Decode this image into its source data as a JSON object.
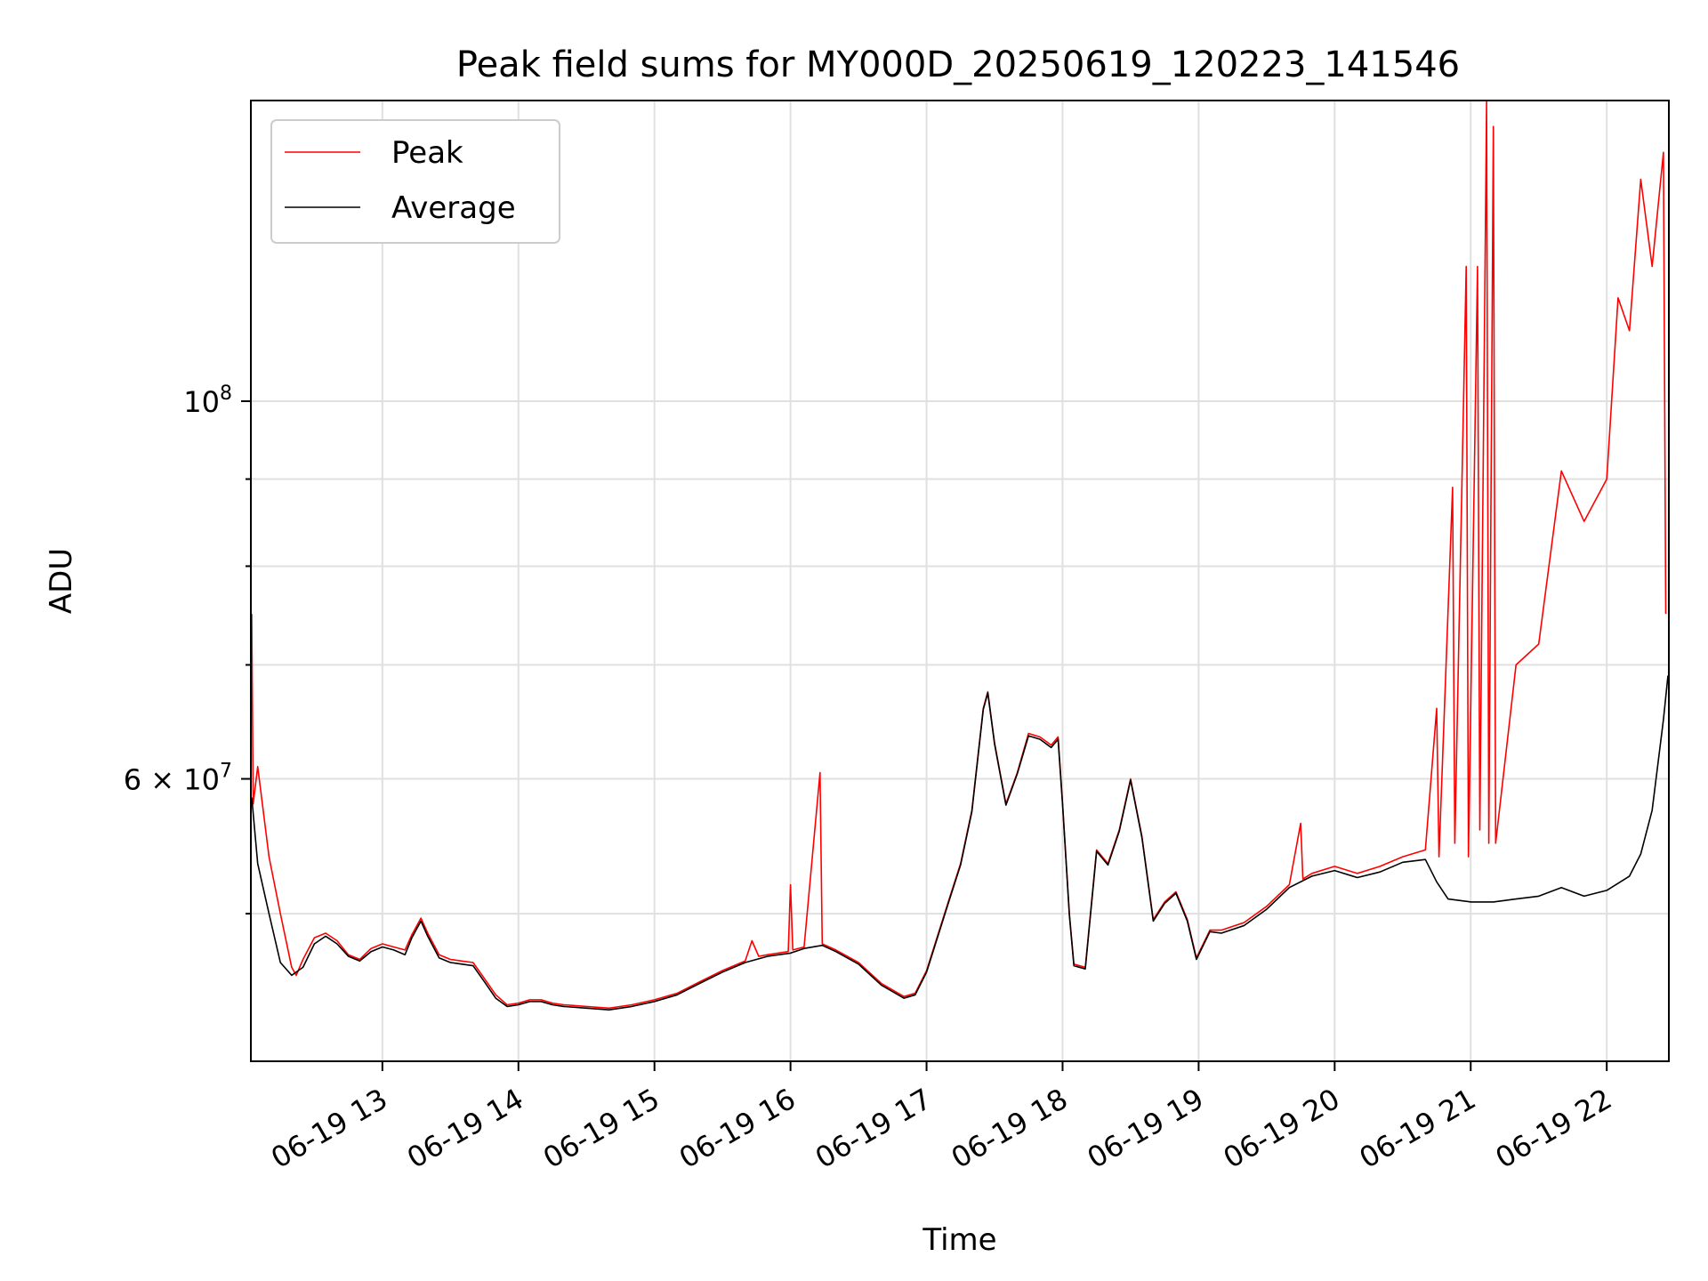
{
  "chart_data": {
    "type": "line",
    "title": "Peak field sums for MY000D_20250619_120223_141546",
    "xlabel": "Time",
    "ylabel": "ADU",
    "yscale": "log",
    "ylim": [
      41000000,
      150000000
    ],
    "xlim": [
      "2025-06-19 12:02:23",
      "2025-06-19 22:27:00"
    ],
    "grid": true,
    "legend_position": "upper left",
    "x_tick_labels": [
      "06-19 13",
      "06-19 14",
      "06-19 15",
      "06-19 16",
      "06-19 17",
      "06-19 18",
      "06-19 19",
      "06-19 20",
      "06-19 21",
      "06-19 22"
    ],
    "y_tick_labels": [
      {
        "value": 100000000,
        "base": "10",
        "exponent": "8",
        "mantissa": ""
      },
      {
        "value": 60000000,
        "base": "10",
        "exponent": "7",
        "mantissa": "6 × "
      }
    ],
    "series": [
      {
        "name": "Peak",
        "color": "#ff0000",
        "points": [
          [
            "2025-06-19 12:02:23",
            75000000
          ],
          [
            "2025-06-19 12:03:00",
            58000000
          ],
          [
            "2025-06-19 12:05:00",
            61000000
          ],
          [
            "2025-06-19 12:10:00",
            54000000
          ],
          [
            "2025-06-19 12:15:00",
            50000000
          ],
          [
            "2025-06-19 12:20:00",
            46500000
          ],
          [
            "2025-06-19 12:22:00",
            46000000
          ],
          [
            "2025-06-19 12:25:00",
            47000000
          ],
          [
            "2025-06-19 12:30:00",
            48400000
          ],
          [
            "2025-06-19 12:35:00",
            48700000
          ],
          [
            "2025-06-19 12:40:00",
            48200000
          ],
          [
            "2025-06-19 12:45:00",
            47300000
          ],
          [
            "2025-06-19 12:50:00",
            47000000
          ],
          [
            "2025-06-19 12:55:00",
            47700000
          ],
          [
            "2025-06-19 13:00:00",
            48000000
          ],
          [
            "2025-06-19 13:05:00",
            47800000
          ],
          [
            "2025-06-19 13:10:00",
            47600000
          ],
          [
            "2025-06-19 13:13:00",
            48600000
          ],
          [
            "2025-06-19 13:17:00",
            49700000
          ],
          [
            "2025-06-19 13:20:00",
            48700000
          ],
          [
            "2025-06-19 13:25:00",
            47300000
          ],
          [
            "2025-06-19 13:30:00",
            47000000
          ],
          [
            "2025-06-19 13:35:00",
            46900000
          ],
          [
            "2025-06-19 13:40:00",
            46800000
          ],
          [
            "2025-06-19 13:45:00",
            45800000
          ],
          [
            "2025-06-19 13:50:00",
            44800000
          ],
          [
            "2025-06-19 13:55:00",
            44200000
          ],
          [
            "2025-06-19 14:00:00",
            44300000
          ],
          [
            "2025-06-19 14:05:00",
            44500000
          ],
          [
            "2025-06-19 14:10:00",
            44500000
          ],
          [
            "2025-06-19 14:15:00",
            44300000
          ],
          [
            "2025-06-19 14:20:00",
            44200000
          ],
          [
            "2025-06-19 14:30:00",
            44100000
          ],
          [
            "2025-06-19 14:40:00",
            44000000
          ],
          [
            "2025-06-19 14:50:00",
            44200000
          ],
          [
            "2025-06-19 15:00:00",
            44500000
          ],
          [
            "2025-06-19 15:10:00",
            44900000
          ],
          [
            "2025-06-19 15:20:00",
            45600000
          ],
          [
            "2025-06-19 15:30:00",
            46300000
          ],
          [
            "2025-06-19 15:40:00",
            46900000
          ],
          [
            "2025-06-19 15:43:00",
            48200000
          ],
          [
            "2025-06-19 15:46:00",
            47200000
          ],
          [
            "2025-06-19 15:50:00",
            47300000
          ],
          [
            "2025-06-19 15:59:00",
            47500000
          ],
          [
            "2025-06-19 16:00:00",
            52000000
          ],
          [
            "2025-06-19 16:01:00",
            47600000
          ],
          [
            "2025-06-19 16:06:00",
            47800000
          ],
          [
            "2025-06-19 16:13:00",
            60500000
          ],
          [
            "2025-06-19 16:14:00",
            48000000
          ],
          [
            "2025-06-19 16:20:00",
            47600000
          ],
          [
            "2025-06-19 16:30:00",
            46800000
          ],
          [
            "2025-06-19 16:40:00",
            45500000
          ],
          [
            "2025-06-19 16:50:00",
            44700000
          ],
          [
            "2025-06-19 16:55:00",
            44900000
          ],
          [
            "2025-06-19 17:00:00",
            46300000
          ],
          [
            "2025-06-19 17:10:00",
            51000000
          ],
          [
            "2025-06-19 17:15:00",
            53500000
          ],
          [
            "2025-06-19 17:20:00",
            57500000
          ],
          [
            "2025-06-19 17:25:00",
            66000000
          ],
          [
            "2025-06-19 17:27:00",
            67500000
          ],
          [
            "2025-06-19 17:30:00",
            63000000
          ],
          [
            "2025-06-19 17:35:00",
            58000000
          ],
          [
            "2025-06-19 17:40:00",
            60500000
          ],
          [
            "2025-06-19 17:45:00",
            63800000
          ],
          [
            "2025-06-19 17:50:00",
            63500000
          ],
          [
            "2025-06-19 17:55:00",
            62800000
          ],
          [
            "2025-06-19 17:58:00",
            63500000
          ],
          [
            "2025-06-19 18:00:00",
            58000000
          ],
          [
            "2025-06-19 18:03:00",
            50000000
          ],
          [
            "2025-06-19 18:05:00",
            46700000
          ],
          [
            "2025-06-19 18:10:00",
            46500000
          ],
          [
            "2025-06-19 18:15:00",
            54500000
          ],
          [
            "2025-06-19 18:20:00",
            53500000
          ],
          [
            "2025-06-19 18:25:00",
            56000000
          ],
          [
            "2025-06-19 18:30:00",
            60000000
          ],
          [
            "2025-06-19 18:35:00",
            55500000
          ],
          [
            "2025-06-19 18:40:00",
            49600000
          ],
          [
            "2025-06-19 18:45:00",
            50800000
          ],
          [
            "2025-06-19 18:50:00",
            51500000
          ],
          [
            "2025-06-19 18:55:00",
            49600000
          ],
          [
            "2025-06-19 18:59:00",
            47100000
          ],
          [
            "2025-06-19 19:05:00",
            48900000
          ],
          [
            "2025-06-19 19:10:00",
            48900000
          ],
          [
            "2025-06-19 19:20:00",
            49400000
          ],
          [
            "2025-06-19 19:30:00",
            50500000
          ],
          [
            "2025-06-19 19:40:00",
            52000000
          ],
          [
            "2025-06-19 19:45:00",
            56500000
          ],
          [
            "2025-06-19 19:46:00",
            52400000
          ],
          [
            "2025-06-19 19:50:00",
            52800000
          ],
          [
            "2025-06-19 20:00:00",
            53300000
          ],
          [
            "2025-06-19 20:10:00",
            52800000
          ],
          [
            "2025-06-19 20:20:00",
            53300000
          ],
          [
            "2025-06-19 20:30:00",
            54000000
          ],
          [
            "2025-06-19 20:40:00",
            54500000
          ],
          [
            "2025-06-19 20:45:00",
            66000000
          ],
          [
            "2025-06-19 20:46:00",
            54000000
          ],
          [
            "2025-06-19 20:52:00",
            89000000
          ],
          [
            "2025-06-19 20:53:00",
            55000000
          ],
          [
            "2025-06-19 20:58:00",
            120000000
          ],
          [
            "2025-06-19 20:59:00",
            54000000
          ],
          [
            "2025-06-19 21:03:00",
            120000000
          ],
          [
            "2025-06-19 21:04:00",
            56000000
          ],
          [
            "2025-06-19 21:07:00",
            150000000
          ],
          [
            "2025-06-19 21:08:00",
            55000000
          ],
          [
            "2025-06-19 21:10:00",
            145000000
          ],
          [
            "2025-06-19 21:11:00",
            55000000
          ],
          [
            "2025-06-19 21:20:00",
            70000000
          ],
          [
            "2025-06-19 21:30:00",
            72000000
          ],
          [
            "2025-06-19 21:40:00",
            91000000
          ],
          [
            "2025-06-19 21:50:00",
            85000000
          ],
          [
            "2025-06-19 22:00:00",
            90000000
          ],
          [
            "2025-06-19 22:05:00",
            115000000
          ],
          [
            "2025-06-19 22:10:00",
            110000000
          ],
          [
            "2025-06-19 22:15:00",
            135000000
          ],
          [
            "2025-06-19 22:20:00",
            120000000
          ],
          [
            "2025-06-19 22:25:00",
            140000000
          ],
          [
            "2025-06-19 22:26:00",
            75000000
          ]
        ]
      },
      {
        "name": "Average",
        "color": "#000000",
        "points": [
          [
            "2025-06-19 12:02:23",
            58500000
          ],
          [
            "2025-06-19 12:05:00",
            53500000
          ],
          [
            "2025-06-19 12:10:00",
            50000000
          ],
          [
            "2025-06-19 12:15:00",
            46800000
          ],
          [
            "2025-06-19 12:20:00",
            46000000
          ],
          [
            "2025-06-19 12:25:00",
            46500000
          ],
          [
            "2025-06-19 12:30:00",
            48000000
          ],
          [
            "2025-06-19 12:35:00",
            48500000
          ],
          [
            "2025-06-19 12:40:00",
            48000000
          ],
          [
            "2025-06-19 12:45:00",
            47200000
          ],
          [
            "2025-06-19 12:50:00",
            46900000
          ],
          [
            "2025-06-19 12:55:00",
            47500000
          ],
          [
            "2025-06-19 13:00:00",
            47800000
          ],
          [
            "2025-06-19 13:05:00",
            47600000
          ],
          [
            "2025-06-19 13:10:00",
            47300000
          ],
          [
            "2025-06-19 13:13:00",
            48400000
          ],
          [
            "2025-06-19 13:17:00",
            49500000
          ],
          [
            "2025-06-19 13:20:00",
            48500000
          ],
          [
            "2025-06-19 13:25:00",
            47100000
          ],
          [
            "2025-06-19 13:30:00",
            46800000
          ],
          [
            "2025-06-19 13:35:00",
            46700000
          ],
          [
            "2025-06-19 13:40:00",
            46600000
          ],
          [
            "2025-06-19 13:45:00",
            45600000
          ],
          [
            "2025-06-19 13:50:00",
            44600000
          ],
          [
            "2025-06-19 13:55:00",
            44100000
          ],
          [
            "2025-06-19 14:00:00",
            44200000
          ],
          [
            "2025-06-19 14:05:00",
            44400000
          ],
          [
            "2025-06-19 14:10:00",
            44400000
          ],
          [
            "2025-06-19 14:15:00",
            44200000
          ],
          [
            "2025-06-19 14:20:00",
            44100000
          ],
          [
            "2025-06-19 14:30:00",
            44000000
          ],
          [
            "2025-06-19 14:40:00",
            43900000
          ],
          [
            "2025-06-19 14:50:00",
            44100000
          ],
          [
            "2025-06-19 15:00:00",
            44400000
          ],
          [
            "2025-06-19 15:10:00",
            44800000
          ],
          [
            "2025-06-19 15:20:00",
            45500000
          ],
          [
            "2025-06-19 15:30:00",
            46200000
          ],
          [
            "2025-06-19 15:40:00",
            46800000
          ],
          [
            "2025-06-19 15:50:00",
            47200000
          ],
          [
            "2025-06-19 16:00:00",
            47400000
          ],
          [
            "2025-06-19 16:06:00",
            47700000
          ],
          [
            "2025-06-19 16:14:00",
            47900000
          ],
          [
            "2025-06-19 16:20:00",
            47500000
          ],
          [
            "2025-06-19 16:30:00",
            46700000
          ],
          [
            "2025-06-19 16:40:00",
            45400000
          ],
          [
            "2025-06-19 16:50:00",
            44600000
          ],
          [
            "2025-06-19 16:55:00",
            44800000
          ],
          [
            "2025-06-19 17:00:00",
            46200000
          ],
          [
            "2025-06-19 17:10:00",
            50900000
          ],
          [
            "2025-06-19 17:15:00",
            53400000
          ],
          [
            "2025-06-19 17:20:00",
            57400000
          ],
          [
            "2025-06-19 17:25:00",
            65900000
          ],
          [
            "2025-06-19 17:27:00",
            67400000
          ],
          [
            "2025-06-19 17:30:00",
            62900000
          ],
          [
            "2025-06-19 17:35:00",
            57900000
          ],
          [
            "2025-06-19 17:40:00",
            60400000
          ],
          [
            "2025-06-19 17:45:00",
            63600000
          ],
          [
            "2025-06-19 17:50:00",
            63300000
          ],
          [
            "2025-06-19 17:55:00",
            62600000
          ],
          [
            "2025-06-19 17:58:00",
            63300000
          ],
          [
            "2025-06-19 18:00:00",
            57900000
          ],
          [
            "2025-06-19 18:03:00",
            49900000
          ],
          [
            "2025-06-19 18:05:00",
            46600000
          ],
          [
            "2025-06-19 18:10:00",
            46400000
          ],
          [
            "2025-06-19 18:15:00",
            54400000
          ],
          [
            "2025-06-19 18:20:00",
            53400000
          ],
          [
            "2025-06-19 18:25:00",
            55900000
          ],
          [
            "2025-06-19 18:30:00",
            59900000
          ],
          [
            "2025-06-19 18:35:00",
            55400000
          ],
          [
            "2025-06-19 18:40:00",
            49500000
          ],
          [
            "2025-06-19 18:45:00",
            50700000
          ],
          [
            "2025-06-19 18:50:00",
            51400000
          ],
          [
            "2025-06-19 18:55:00",
            49500000
          ],
          [
            "2025-06-19 18:59:00",
            47000000
          ],
          [
            "2025-06-19 19:05:00",
            48800000
          ],
          [
            "2025-06-19 19:10:00",
            48700000
          ],
          [
            "2025-06-19 19:20:00",
            49200000
          ],
          [
            "2025-06-19 19:30:00",
            50300000
          ],
          [
            "2025-06-19 19:40:00",
            51800000
          ],
          [
            "2025-06-19 19:50:00",
            52600000
          ],
          [
            "2025-06-19 20:00:00",
            53000000
          ],
          [
            "2025-06-19 20:10:00",
            52500000
          ],
          [
            "2025-06-19 20:20:00",
            52900000
          ],
          [
            "2025-06-19 20:30:00",
            53600000
          ],
          [
            "2025-06-19 20:40:00",
            53800000
          ],
          [
            "2025-06-19 20:45:00",
            52200000
          ],
          [
            "2025-06-19 20:50:00",
            51000000
          ],
          [
            "2025-06-19 21:00:00",
            50800000
          ],
          [
            "2025-06-19 21:10:00",
            50800000
          ],
          [
            "2025-06-19 21:20:00",
            51000000
          ],
          [
            "2025-06-19 21:30:00",
            51200000
          ],
          [
            "2025-06-19 21:40:00",
            51800000
          ],
          [
            "2025-06-19 21:50:00",
            51200000
          ],
          [
            "2025-06-19 22:00:00",
            51600000
          ],
          [
            "2025-06-19 22:10:00",
            52600000
          ],
          [
            "2025-06-19 22:15:00",
            54200000
          ],
          [
            "2025-06-19 22:20:00",
            57500000
          ],
          [
            "2025-06-19 22:25:00",
            65000000
          ],
          [
            "2025-06-19 22:27:00",
            69000000
          ]
        ]
      }
    ]
  }
}
